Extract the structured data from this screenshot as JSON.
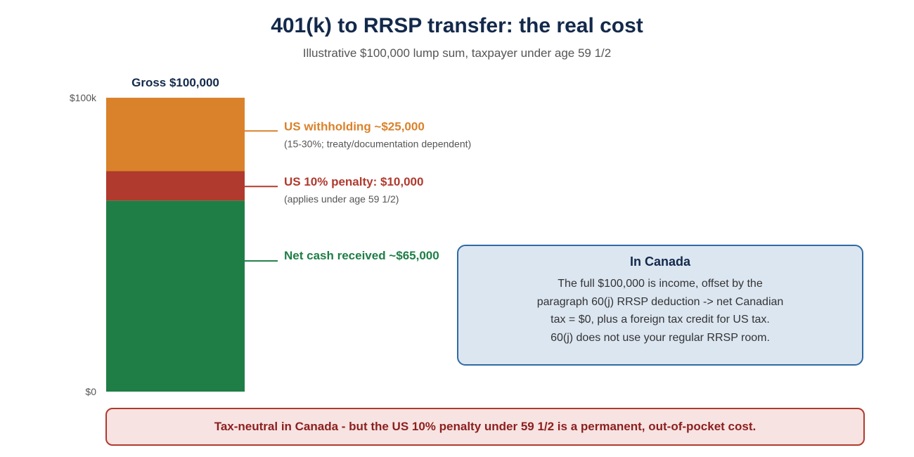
{
  "title": "401(k) to RRSP transfer: the real cost",
  "subtitle": "Illustrative $100,000 lump sum, taxpayer under age 59 1/2",
  "chart_data": {
    "type": "bar",
    "stacked": true,
    "categories": [
      "Gross $100,000"
    ],
    "ylim": [
      0,
      100000
    ],
    "ytick_labels": [
      {
        "value": 0,
        "label": "$0"
      },
      {
        "value": 100000,
        "label": "$100k"
      }
    ],
    "series": [
      {
        "label": "Net cash received ~$65,000",
        "value": 65000,
        "color": "#1e7e46",
        "note": ""
      },
      {
        "label": "US 10% penalty: $10,000",
        "value": 10000,
        "color": "#b03a2e",
        "note": "(applies under age 59 1/2)"
      },
      {
        "label": "US withholding ~$25,000",
        "value": 25000,
        "color": "#d9822b",
        "note": "(15-30%; treaty/documentation dependent)"
      }
    ]
  },
  "callout": {
    "title": "In Canada",
    "lines": [
      "The full $100,000 is income, offset by the",
      "paragraph 60(j) RRSP deduction -> net Canadian",
      "tax = $0, plus a foreign tax credit for US tax.",
      "60(j) does not use your regular RRSP room."
    ]
  },
  "footer": "Tax-neutral in Canada - but the US 10% penalty under 59 1/2 is a permanent, out-of-pocket cost."
}
